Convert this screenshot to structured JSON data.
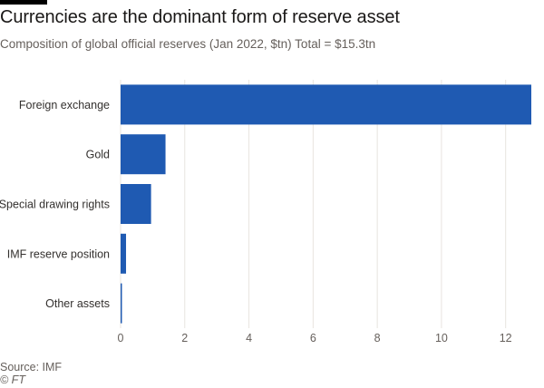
{
  "header": {
    "title": "Currencies are the dominant form of reserve asset",
    "subtitle": "Composition of global official reserves (Jan 2022, $tn) Total = $15.3tn"
  },
  "footer": {
    "source": "Source: IMF",
    "credit": "© FT"
  },
  "colors": {
    "bar": "#1f5ab2",
    "grid": "#e8e4df",
    "axis_text": "#66605c",
    "label_text": "#33302e"
  },
  "chart_data": {
    "type": "bar",
    "orientation": "horizontal",
    "categories": [
      "Foreign exchange",
      "Gold",
      "Special drawing rights",
      "IMF reserve position",
      "Other assets"
    ],
    "values": [
      12.8,
      1.4,
      0.95,
      0.17,
      0.02
    ],
    "xlim": [
      0,
      12.8
    ],
    "xticks": [
      0,
      2,
      4,
      6,
      8,
      10,
      12
    ],
    "grid": true,
    "unit": "$tn"
  }
}
